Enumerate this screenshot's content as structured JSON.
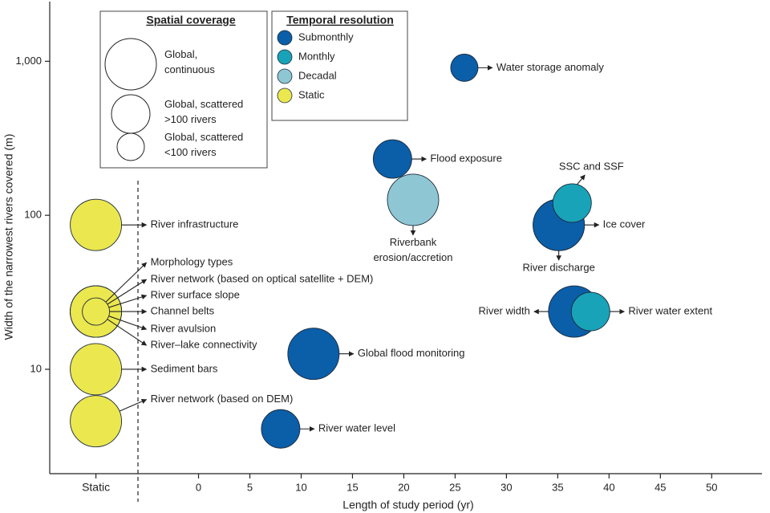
{
  "chart_data": {
    "type": "bubble",
    "xlabel": "Length of study period (yr)",
    "ylabel": "Width of the narrowest rivers covered (m)",
    "xlim": [
      -14.5,
      54.9
    ],
    "xticks": [
      {
        "value": -10,
        "label": "Static"
      },
      0,
      5,
      10,
      15,
      20,
      25,
      30,
      35,
      40,
      45,
      50
    ],
    "ylim": [
      2.1,
      2500
    ],
    "ylog": true,
    "yticks": [
      10,
      100,
      {
        "value": 1000,
        "label": "1,000"
      }
    ],
    "size_legend": {
      "title": "Spatial coverage",
      "labels": [
        "Global,\ncontinuous",
        "Global, scattered\n>100 rivers",
        "Global, scattered\n<100 rivers"
      ]
    },
    "color_legend_title": "Temporal resolution",
    "series": [
      {
        "name": "Submonthly",
        "color": "#0b5ea8",
        "labels": [
          "Water storage anomaly",
          "Flood exposure",
          "Ice cover",
          "River discharge",
          "River width",
          "Global flood monitoring",
          "River water level"
        ],
        "x": [
          25.9,
          18.9,
          35.1,
          35.1,
          36.6,
          11.2,
          8.0
        ],
        "values": [
          908,
          232,
          86.6,
          86.6,
          23.7,
          12.6,
          4.1
        ],
        "coverage": [
          "Global, scattered\n<100 rivers",
          "Global, scattered\n>100 rivers",
          "Global,\ncontinuous",
          "Global,\ncontinuous",
          "Global,\ncontinuous",
          "Global,\ncontinuous",
          "Global, scattered\n>100 rivers"
        ]
      },
      {
        "name": "Monthly",
        "color": "#19a3b9",
        "labels": [
          "SSC and SSF",
          "River water extent"
        ],
        "x": [
          36.4,
          38.2
        ],
        "values": [
          120,
          23.7
        ],
        "coverage": [
          "Global, scattered\n>100 rivers",
          "Global, scattered\n>100 rivers"
        ]
      },
      {
        "name": "Decadal",
        "color": "#8ec7d3",
        "labels": [
          "Riverbank\nerosion/accretion"
        ],
        "x": [
          20.9
        ],
        "values": [
          126
        ],
        "coverage": [
          "Global,\ncontinuous"
        ]
      },
      {
        "name": "Static",
        "color": "#ebe74e",
        "labels": [
          "River infrastructure",
          "Morphology types",
          "River network (based on optical satellite + DEM)",
          "River surface slope",
          "Channel belts",
          "River avulsion",
          "River–lake connectivity",
          "Sediment bars",
          "River network (based on DEM)"
        ],
        "x": [
          "Static",
          "Static",
          "Static",
          "Static",
          "Static",
          "Static",
          "Static",
          "Static",
          "Static"
        ],
        "values": [
          86.6,
          23.7,
          23.7,
          23.7,
          23.7,
          23.7,
          23.7,
          10,
          4.6
        ],
        "coverage": [
          "Global,\ncontinuous",
          "Global,\ncontinuous",
          "Global,\ncontinuous",
          "Global,\ncontinuous",
          "Global, scattered\n<100 rivers",
          "Global,\ncontinuous",
          "Global,\ncontinuous",
          "Global,\ncontinuous",
          "Global,\ncontinuous"
        ]
      }
    ]
  }
}
